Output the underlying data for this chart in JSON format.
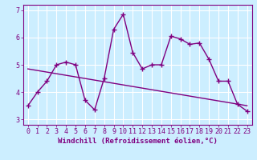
{
  "xlabel": "Windchill (Refroidissement éolien,°C)",
  "xlim": [
    -0.5,
    23.5
  ],
  "ylim": [
    2.8,
    7.2
  ],
  "yticks": [
    3,
    4,
    5,
    6,
    7
  ],
  "xticks": [
    0,
    1,
    2,
    3,
    4,
    5,
    6,
    7,
    8,
    9,
    10,
    11,
    12,
    13,
    14,
    15,
    16,
    17,
    18,
    19,
    20,
    21,
    22,
    23
  ],
  "line1_x": [
    0,
    1,
    2,
    3,
    4,
    5,
    6,
    7,
    8,
    9,
    10,
    11,
    12,
    13,
    14,
    15,
    16,
    17,
    18,
    19,
    20,
    21,
    22,
    23
  ],
  "line1_y": [
    3.5,
    4.0,
    4.4,
    5.0,
    5.1,
    5.0,
    3.7,
    3.35,
    4.5,
    6.3,
    6.85,
    5.45,
    4.85,
    5.0,
    5.0,
    6.05,
    5.95,
    5.75,
    5.8,
    5.2,
    4.4,
    4.4,
    3.55,
    3.3
  ],
  "line2_x": [
    0,
    23
  ],
  "line2_y": [
    4.85,
    3.5
  ],
  "line_color": "#800080",
  "bg_color": "#cceeff",
  "grid_color": "#ffffff",
  "marker": "+",
  "marker_size": 5,
  "line_width": 1.0,
  "xlabel_fontsize": 6.5,
  "tick_fontsize": 6
}
